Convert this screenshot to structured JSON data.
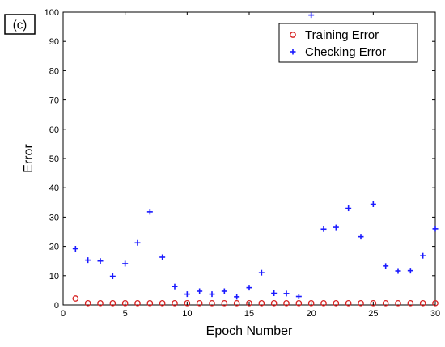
{
  "panel_label": "(c)",
  "chart_data": {
    "type": "scatter",
    "xlabel": "Epoch Number",
    "ylabel": "Error",
    "xlim": [
      0,
      30
    ],
    "ylim": [
      0,
      100
    ],
    "x_ticks": [
      0,
      5,
      10,
      15,
      20,
      25,
      30
    ],
    "y_ticks": [
      0,
      10,
      20,
      30,
      40,
      50,
      60,
      70,
      80,
      90,
      100
    ],
    "x_tick_labels": [
      "0",
      "5",
      "10",
      "15",
      "20",
      "25",
      "30"
    ],
    "y_tick_labels": [
      "0",
      "10",
      "20",
      "30",
      "40",
      "50",
      "60",
      "70",
      "80",
      "90",
      "100"
    ],
    "grid": false,
    "legend": {
      "position": "top-right"
    },
    "x": [
      1,
      2,
      3,
      4,
      5,
      6,
      7,
      8,
      9,
      10,
      11,
      12,
      13,
      14,
      15,
      16,
      17,
      18,
      19,
      20,
      21,
      22,
      23,
      24,
      25,
      26,
      27,
      28,
      29,
      30
    ],
    "series": [
      {
        "name": "Training Error",
        "marker": "circle",
        "color": "#d62020",
        "values": [
          2.2,
          0.6,
          0.6,
          0.6,
          0.6,
          0.6,
          0.6,
          0.6,
          0.6,
          0.6,
          0.6,
          0.6,
          0.6,
          0.6,
          0.6,
          0.6,
          0.6,
          0.6,
          0.6,
          0.6,
          0.6,
          0.6,
          0.6,
          0.6,
          0.6,
          0.6,
          0.6,
          0.6,
          0.6,
          0.6
        ]
      },
      {
        "name": "Checking Error",
        "marker": "plus",
        "color": "#1a1aff",
        "values": [
          19.2,
          15.3,
          15.0,
          9.8,
          14.1,
          21.2,
          31.8,
          16.3,
          6.3,
          3.7,
          4.7,
          3.7,
          4.7,
          2.8,
          5.9,
          11.0,
          4.0,
          3.9,
          2.9,
          99.0,
          25.9,
          26.5,
          33.0,
          23.3,
          34.4,
          13.3,
          11.6,
          11.7,
          16.8,
          26.0
        ]
      }
    ]
  }
}
